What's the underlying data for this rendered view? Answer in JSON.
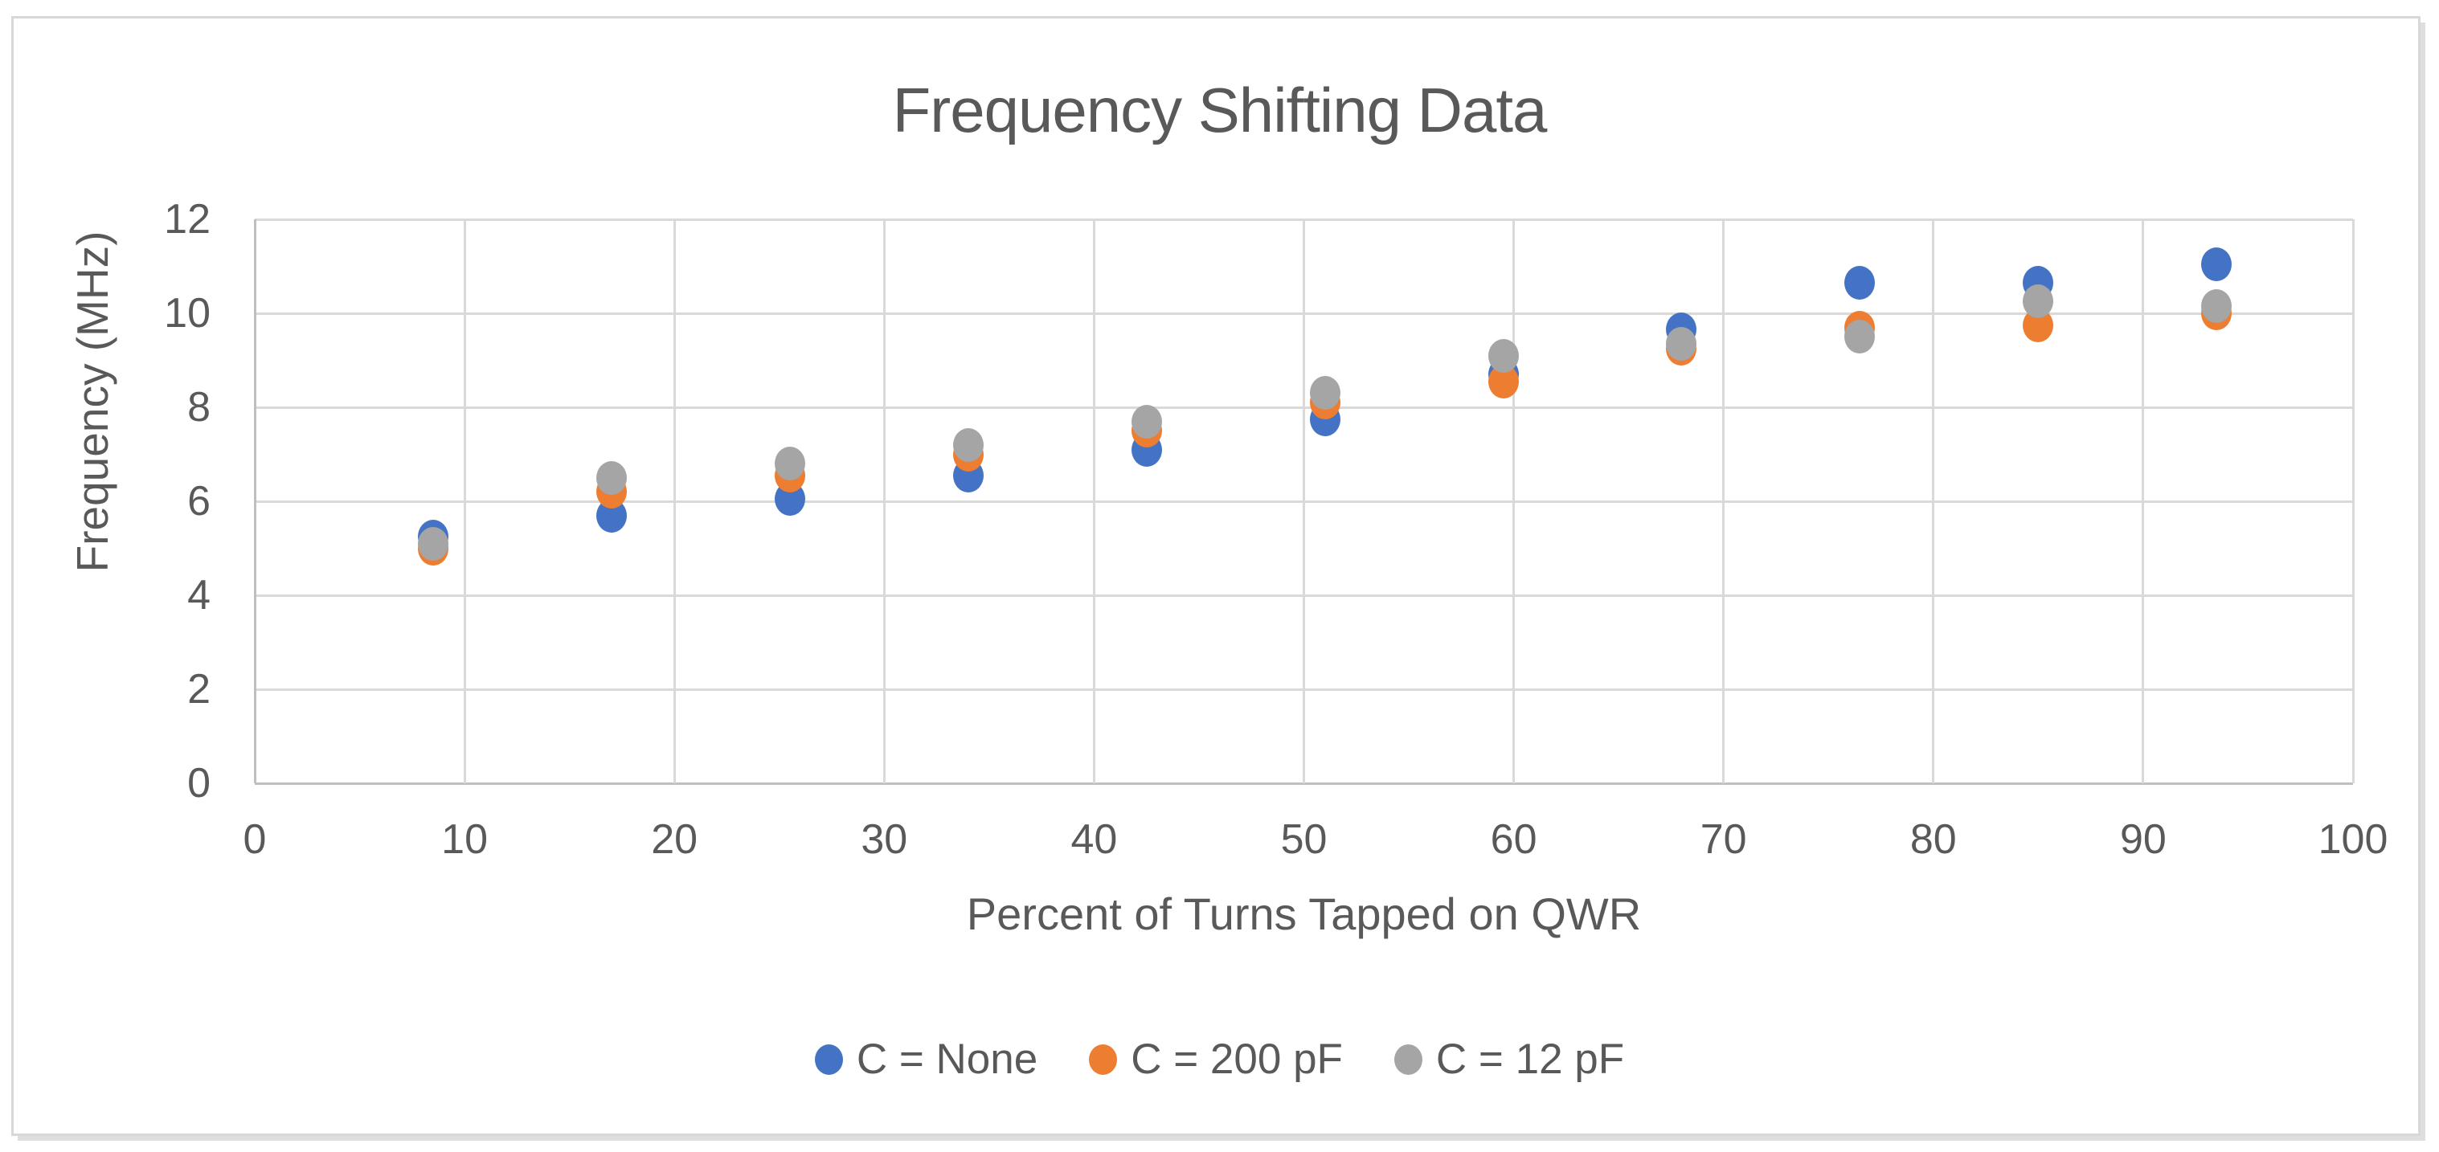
{
  "chart": {
    "title": "Frequency Shifting Data",
    "text_color": "#595959",
    "gridline_color": "#D9D9D9",
    "axis_line_color": "#BFBFBF",
    "border_color": "#D8D8D8",
    "background_color": "#FFFFFF"
  },
  "chart_data": {
    "type": "scatter",
    "title": "Frequency Shifting Data",
    "xlabel": "Percent of Turns Tapped on QWR",
    "ylabel": "Frequency (MHz)",
    "xlim": [
      0,
      100
    ],
    "ylim": [
      0,
      12
    ],
    "x_ticks": [
      0,
      10,
      20,
      30,
      40,
      50,
      60,
      70,
      80,
      90,
      100
    ],
    "y_ticks": [
      0,
      2,
      4,
      6,
      8,
      10,
      12
    ],
    "grid": true,
    "legend_position": "bottom",
    "x": [
      8.5,
      17,
      25.5,
      34,
      42.5,
      51,
      59.5,
      68,
      76.5,
      85,
      93.5
    ],
    "series": [
      {
        "name": "C = None",
        "color": "#4472C4",
        "values": [
          5.25,
          5.7,
          6.05,
          6.55,
          7.1,
          7.75,
          8.7,
          9.65,
          10.65,
          10.65,
          11.05
        ]
      },
      {
        "name": "C = 200 pF",
        "color": "#ED7D31",
        "values": [
          5.0,
          6.2,
          6.55,
          7.0,
          7.5,
          8.1,
          8.55,
          9.25,
          9.7,
          9.75,
          10.0
        ]
      },
      {
        "name": "C = 12 pF",
        "color": "#A5A5A5",
        "values": [
          5.1,
          6.5,
          6.8,
          7.2,
          7.7,
          8.3,
          9.1,
          9.35,
          9.5,
          10.25,
          10.15
        ]
      }
    ]
  }
}
